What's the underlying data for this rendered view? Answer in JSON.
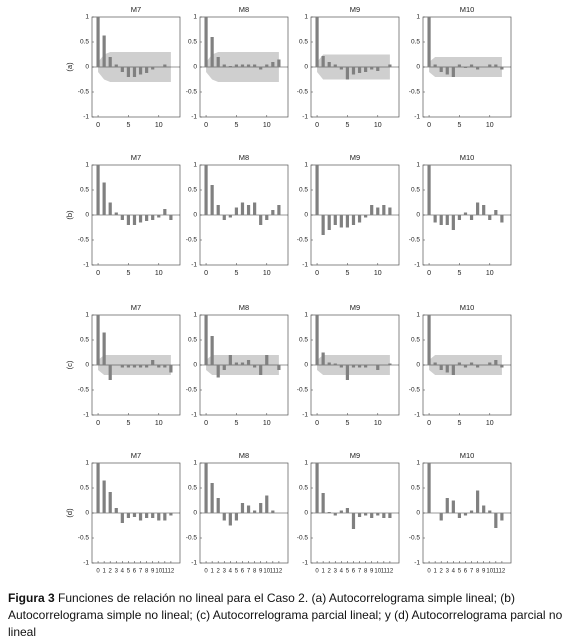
{
  "chart_data": [
    {
      "type": "bar",
      "title": "M7",
      "ylabel": "(a)",
      "x": [
        0,
        1,
        2,
        3,
        4,
        5,
        6,
        7,
        8,
        9,
        10,
        11,
        12
      ],
      "values": [
        1,
        0.63,
        0.2,
        0.05,
        -0.1,
        -0.2,
        -0.2,
        -0.15,
        -0.12,
        -0.05,
        0,
        0.05,
        0
      ],
      "color": "#808080",
      "xlim": [
        -1,
        13.5
      ],
      "ylim": [
        -1,
        1
      ],
      "xticks": [
        0,
        5,
        10
      ],
      "yticks": [
        -1,
        -0.5,
        0,
        0.5,
        1
      ],
      "band_upper": [
        0.1,
        0.25,
        0.3,
        0.3,
        0.3,
        0.3,
        0.3,
        0.3,
        0.3,
        0.3,
        0.3,
        0.3,
        0.3
      ],
      "band_lower": [
        -0.1,
        -0.25,
        -0.3,
        -0.3,
        -0.3,
        -0.3,
        -0.3,
        -0.3,
        -0.3,
        -0.3,
        -0.3,
        -0.3,
        -0.3
      ]
    },
    {
      "type": "bar",
      "title": "M8",
      "x": [
        0,
        1,
        2,
        3,
        4,
        5,
        6,
        7,
        8,
        9,
        10,
        11,
        12
      ],
      "values": [
        1,
        0.6,
        0.2,
        0.05,
        0.02,
        0.05,
        0.05,
        0.05,
        0.05,
        -0.05,
        0.05,
        0.1,
        0.15
      ],
      "color": "#808080",
      "xlim": [
        -1,
        13.5
      ],
      "ylim": [
        -1,
        1
      ],
      "xticks": [
        0,
        5,
        10
      ],
      "yticks": [
        -1,
        -0.5,
        0,
        0.5,
        1
      ],
      "band_upper": [
        0.1,
        0.25,
        0.3,
        0.3,
        0.3,
        0.3,
        0.3,
        0.3,
        0.3,
        0.3,
        0.3,
        0.3,
        0.3
      ],
      "band_lower": [
        -0.1,
        -0.25,
        -0.3,
        -0.3,
        -0.3,
        -0.3,
        -0.3,
        -0.3,
        -0.3,
        -0.3,
        -0.3,
        -0.3,
        -0.3
      ]
    },
    {
      "type": "bar",
      "title": "M9",
      "x": [
        0,
        1,
        2,
        3,
        4,
        5,
        6,
        7,
        8,
        9,
        10,
        11,
        12
      ],
      "values": [
        1,
        0.22,
        0.1,
        0.05,
        -0.05,
        -0.25,
        -0.15,
        -0.12,
        -0.1,
        -0.05,
        -0.08,
        0,
        0.05
      ],
      "color": "#808080",
      "xlim": [
        -1,
        13.5
      ],
      "ylim": [
        -1,
        1
      ],
      "xticks": [
        0,
        5,
        10
      ],
      "yticks": [
        -1,
        -0.5,
        0,
        0.5,
        1
      ],
      "band_upper": [
        0.1,
        0.25,
        0.25,
        0.25,
        0.25,
        0.25,
        0.25,
        0.25,
        0.25,
        0.25,
        0.25,
        0.25,
        0.25
      ],
      "band_lower": [
        -0.1,
        -0.25,
        -0.25,
        -0.25,
        -0.25,
        -0.25,
        -0.25,
        -0.25,
        -0.25,
        -0.25,
        -0.25,
        -0.25,
        -0.25
      ]
    },
    {
      "type": "bar",
      "title": "M10",
      "x": [
        0,
        1,
        2,
        3,
        4,
        5,
        6,
        7,
        8,
        9,
        10,
        11,
        12
      ],
      "values": [
        1,
        0.05,
        -0.1,
        -0.15,
        -0.2,
        0.05,
        -0.02,
        0.05,
        -0.05,
        0,
        0.05,
        0.05,
        -0.05
      ],
      "color": "#808080",
      "xlim": [
        -1,
        13.5
      ],
      "ylim": [
        -1,
        1
      ],
      "xticks": [
        0,
        5,
        10
      ],
      "yticks": [
        -1,
        -0.5,
        0,
        0.5,
        1
      ],
      "band_upper": [
        0.1,
        0.2,
        0.2,
        0.2,
        0.2,
        0.2,
        0.2,
        0.2,
        0.2,
        0.2,
        0.2,
        0.2,
        0.2
      ],
      "band_lower": [
        -0.1,
        -0.2,
        -0.2,
        -0.2,
        -0.2,
        -0.2,
        -0.2,
        -0.2,
        -0.2,
        -0.2,
        -0.2,
        -0.2,
        -0.2
      ]
    },
    {
      "type": "bar",
      "title": "M7",
      "ylabel": "(b)",
      "x": [
        0,
        1,
        2,
        3,
        4,
        5,
        6,
        7,
        8,
        9,
        10,
        11,
        12
      ],
      "values": [
        1,
        0.65,
        0.25,
        0.05,
        -0.1,
        -0.2,
        -0.2,
        -0.15,
        -0.12,
        -0.1,
        -0.05,
        0.12,
        -0.1
      ],
      "color": "#808080",
      "xlim": [
        -1,
        13.5
      ],
      "ylim": [
        -1,
        1
      ],
      "xticks": [
        0,
        5,
        10
      ],
      "yticks": [
        -1,
        -0.5,
        0,
        0.5,
        1
      ]
    },
    {
      "type": "bar",
      "title": "M8",
      "x": [
        0,
        1,
        2,
        3,
        4,
        5,
        6,
        7,
        8,
        9,
        10,
        11,
        12
      ],
      "values": [
        1,
        0.6,
        0.2,
        -0.1,
        -0.05,
        0.15,
        0.25,
        0.2,
        0.25,
        -0.2,
        -0.1,
        0.1,
        0.2
      ],
      "color": "#808080",
      "xlim": [
        -1,
        13.5
      ],
      "ylim": [
        -1,
        1
      ],
      "xticks": [
        0,
        5,
        10
      ],
      "yticks": [
        -1,
        -0.5,
        0,
        0.5,
        1
      ]
    },
    {
      "type": "bar",
      "title": "M9",
      "x": [
        0,
        1,
        2,
        3,
        4,
        5,
        6,
        7,
        8,
        9,
        10,
        11,
        12
      ],
      "values": [
        1,
        -0.4,
        -0.3,
        -0.2,
        -0.25,
        -0.25,
        -0.2,
        -0.15,
        -0.05,
        0.2,
        0.15,
        0.2,
        0.15
      ],
      "color": "#808080",
      "xlim": [
        -1,
        13.5
      ],
      "ylim": [
        -1,
        1
      ],
      "xticks": [
        0,
        5,
        10
      ],
      "yticks": [
        -1,
        -0.5,
        0,
        0.5,
        1
      ]
    },
    {
      "type": "bar",
      "title": "M10",
      "x": [
        0,
        1,
        2,
        3,
        4,
        5,
        6,
        7,
        8,
        9,
        10,
        11,
        12
      ],
      "values": [
        1,
        -0.15,
        -0.2,
        -0.2,
        -0.3,
        -0.1,
        0.05,
        -0.1,
        0.25,
        0.2,
        -0.1,
        0.1,
        -0.15
      ],
      "color": "#808080",
      "xlim": [
        -1,
        13.5
      ],
      "ylim": [
        -1,
        1
      ],
      "xticks": [
        0,
        5,
        10
      ],
      "yticks": [
        -1,
        -0.5,
        0,
        0.5,
        1
      ]
    },
    {
      "type": "bar",
      "title": "M7",
      "ylabel": "(c)",
      "x": [
        0,
        1,
        2,
        3,
        4,
        5,
        6,
        7,
        8,
        9,
        10,
        11,
        12
      ],
      "values": [
        1,
        0.65,
        -0.3,
        0,
        -0.05,
        -0.05,
        -0.05,
        -0.05,
        -0.05,
        0.1,
        -0.05,
        -0.05,
        -0.15
      ],
      "color": "#808080",
      "xlim": [
        -1,
        13.5
      ],
      "ylim": [
        -1,
        1
      ],
      "xticks": [
        0,
        5,
        10
      ],
      "yticks": [
        -1,
        -0.5,
        0,
        0.5,
        1
      ],
      "band_upper": [
        0.1,
        0.2,
        0.2,
        0.2,
        0.2,
        0.2,
        0.2,
        0.2,
        0.2,
        0.2,
        0.2,
        0.2,
        0.2
      ],
      "band_lower": [
        -0.1,
        -0.2,
        -0.2,
        -0.2,
        -0.2,
        -0.2,
        -0.2,
        -0.2,
        -0.2,
        -0.2,
        -0.2,
        -0.2,
        -0.2
      ]
    },
    {
      "type": "bar",
      "title": "M8",
      "x": [
        0,
        1,
        2,
        3,
        4,
        5,
        6,
        7,
        8,
        9,
        10,
        11,
        12
      ],
      "values": [
        1,
        0.58,
        -0.25,
        -0.1,
        0.2,
        0.05,
        0.05,
        0.1,
        -0.05,
        -0.2,
        0.2,
        0,
        -0.1
      ],
      "color": "#808080",
      "xlim": [
        -1,
        13.5
      ],
      "ylim": [
        -1,
        1
      ],
      "xticks": [
        0,
        5,
        10
      ],
      "yticks": [
        -1,
        -0.5,
        0,
        0.5,
        1
      ],
      "band_upper": [
        0.1,
        0.2,
        0.2,
        0.2,
        0.2,
        0.2,
        0.2,
        0.2,
        0.2,
        0.2,
        0.2,
        0.2,
        0.2
      ],
      "band_lower": [
        -0.1,
        -0.2,
        -0.2,
        -0.2,
        -0.2,
        -0.2,
        -0.2,
        -0.2,
        -0.2,
        -0.2,
        -0.2,
        -0.2,
        -0.2
      ]
    },
    {
      "type": "bar",
      "title": "M9",
      "x": [
        0,
        1,
        2,
        3,
        4,
        5,
        6,
        7,
        8,
        9,
        10,
        11,
        12
      ],
      "values": [
        1,
        0.25,
        0.05,
        0.03,
        -0.05,
        -0.3,
        -0.05,
        -0.05,
        -0.05,
        0,
        -0.1,
        0,
        0.03
      ],
      "color": "#808080",
      "xlim": [
        -1,
        13.5
      ],
      "ylim": [
        -1,
        1
      ],
      "xticks": [
        0,
        5,
        10
      ],
      "yticks": [
        -1,
        -0.5,
        0,
        0.5,
        1
      ],
      "band_upper": [
        0.1,
        0.2,
        0.2,
        0.2,
        0.2,
        0.2,
        0.2,
        0.2,
        0.2,
        0.2,
        0.2,
        0.2,
        0.2
      ],
      "band_lower": [
        -0.1,
        -0.2,
        -0.2,
        -0.2,
        -0.2,
        -0.2,
        -0.2,
        -0.2,
        -0.2,
        -0.2,
        -0.2,
        -0.2,
        -0.2
      ]
    },
    {
      "type": "bar",
      "title": "M10",
      "x": [
        0,
        1,
        2,
        3,
        4,
        5,
        6,
        7,
        8,
        9,
        10,
        11,
        12
      ],
      "values": [
        1,
        0.05,
        -0.1,
        -0.15,
        -0.2,
        0.05,
        -0.05,
        0.05,
        -0.05,
        0,
        0.05,
        0.1,
        -0.05
      ],
      "color": "#808080",
      "xlim": [
        -1,
        13.5
      ],
      "ylim": [
        -1,
        1
      ],
      "xticks": [
        0,
        5,
        10
      ],
      "yticks": [
        -1,
        -0.5,
        0,
        0.5,
        1
      ],
      "band_upper": [
        0.1,
        0.2,
        0.2,
        0.2,
        0.2,
        0.2,
        0.2,
        0.2,
        0.2,
        0.2,
        0.2,
        0.2,
        0.2
      ],
      "band_lower": [
        -0.1,
        -0.2,
        -0.2,
        -0.2,
        -0.2,
        -0.2,
        -0.2,
        -0.2,
        -0.2,
        -0.2,
        -0.2,
        -0.2,
        -0.2
      ]
    },
    {
      "type": "bar",
      "title": "M7",
      "ylabel": "(d)",
      "x": [
        0,
        1,
        2,
        3,
        4,
        5,
        6,
        7,
        8,
        9,
        10,
        11,
        12
      ],
      "values": [
        1,
        0.65,
        0.42,
        0.1,
        -0.2,
        -0.1,
        -0.08,
        -0.15,
        -0.1,
        -0.1,
        -0.15,
        -0.15,
        -0.05
      ],
      "color": "#808080",
      "xlim": [
        -1,
        13.5
      ],
      "ylim": [
        -1,
        1
      ],
      "xticks": [
        0,
        1,
        2,
        3,
        4,
        5,
        6,
        7,
        8,
        9,
        10,
        11,
        12
      ],
      "yticks": [
        -1,
        -0.5,
        0,
        0.5,
        1
      ]
    },
    {
      "type": "bar",
      "title": "M8",
      "x": [
        0,
        1,
        2,
        3,
        4,
        5,
        6,
        7,
        8,
        9,
        10,
        11,
        12
      ],
      "values": [
        1,
        0.6,
        0.3,
        -0.15,
        -0.25,
        -0.15,
        0.2,
        0.15,
        0.05,
        0.2,
        0.35,
        0.05,
        0
      ],
      "color": "#808080",
      "xlim": [
        -1,
        13.5
      ],
      "ylim": [
        -1,
        1
      ],
      "xticks": [
        0,
        1,
        2,
        3,
        4,
        5,
        6,
        7,
        8,
        9,
        10,
        11,
        12
      ],
      "yticks": [
        -1,
        -0.5,
        0,
        0.5,
        1
      ]
    },
    {
      "type": "bar",
      "title": "M9",
      "x": [
        0,
        1,
        2,
        3,
        4,
        5,
        6,
        7,
        8,
        9,
        10,
        11,
        12
      ],
      "values": [
        1,
        0.4,
        0.02,
        -0.05,
        0.05,
        0.1,
        -0.32,
        -0.08,
        -0.05,
        -0.1,
        -0.05,
        -0.1,
        -0.1
      ],
      "color": "#808080",
      "xlim": [
        -1,
        13.5
      ],
      "ylim": [
        -1,
        1
      ],
      "xticks": [
        0,
        1,
        2,
        3,
        4,
        5,
        6,
        7,
        8,
        9,
        10,
        11,
        12
      ],
      "yticks": [
        -1,
        -0.5,
        0,
        0.5,
        1
      ]
    },
    {
      "type": "bar",
      "title": "M10",
      "x": [
        0,
        1,
        2,
        3,
        4,
        5,
        6,
        7,
        8,
        9,
        10,
        11,
        12
      ],
      "values": [
        1,
        0,
        -0.15,
        0.3,
        0.25,
        -0.1,
        -0.05,
        0.05,
        0.45,
        0.15,
        0.05,
        -0.3,
        -0.15
      ],
      "color": "#808080",
      "xlim": [
        -1,
        13.5
      ],
      "ylim": [
        -1,
        1
      ],
      "xticks": [
        0,
        1,
        2,
        3,
        4,
        5,
        6,
        7,
        8,
        9,
        10,
        11,
        12
      ],
      "yticks": [
        -1,
        -0.5,
        0,
        0.5,
        1
      ]
    }
  ],
  "caption": {
    "label": "Figura 3",
    "text": "Funciones de relación no lineal para el Caso 2. (a) Autocorrelograma simple lineal; (b) Autocorrelograma simple no lineal; (c) Autocorrelograma parcial lineal; y (d) Autocorrelograma parcial no lineal"
  }
}
